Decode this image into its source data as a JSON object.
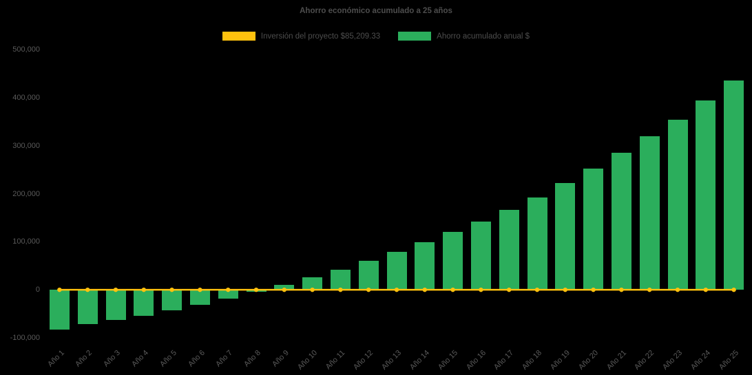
{
  "title": "Ahorro económico acumulado a 25 años",
  "legend": {
    "investment_label": "Inversión del proyecto $85,209.33",
    "savings_label": "Ahorro acumulado anual $"
  },
  "colors": {
    "investment": "#FFC20E",
    "savings": "#2BAE5C",
    "background": "#000000",
    "title_text": "#4d4d4d",
    "axis_text": "#5a5a5a"
  },
  "chart_data": {
    "type": "bar",
    "title": "Ahorro económico acumulado a 25 años",
    "categories": [
      "Año 1",
      "Año 2",
      "Año 3",
      "Año 4",
      "Año 5",
      "Año 6",
      "Año 7",
      "Año 8",
      "Año 9",
      "Año 10",
      "Año 11",
      "Año 12",
      "Año 13",
      "Año 14",
      "Año 15",
      "Año 16",
      "Año 17",
      "Año 18",
      "Año 19",
      "Año 20",
      "Año 21",
      "Año 22",
      "Año 23",
      "Año 24",
      "Año 25"
    ],
    "series": [
      {
        "name": "Inversión del proyecto $85,209.33",
        "type": "line",
        "color": "#FFC20E",
        "values": [
          0,
          0,
          0,
          0,
          0,
          0,
          0,
          0,
          0,
          0,
          0,
          0,
          0,
          0,
          0,
          0,
          0,
          0,
          0,
          0,
          0,
          0,
          0,
          0,
          0
        ]
      },
      {
        "name": "Ahorro acumulado anual $",
        "type": "bar",
        "color": "#2BAE5C",
        "values": [
          -83000,
          -71000,
          -63000,
          -54000,
          -43000,
          -31000,
          -18000,
          -4000,
          10000,
          26000,
          42000,
          60000,
          79000,
          99000,
          120000,
          142000,
          166000,
          192000,
          222000,
          252000,
          285000,
          319000,
          354000,
          394000,
          435000
        ]
      }
    ],
    "xlabel": "",
    "ylabel": "",
    "ylim": [
      -100000,
      500000
    ],
    "yticks": [
      -100000,
      0,
      100000,
      200000,
      300000,
      400000,
      500000
    ],
    "grid": false,
    "legend_position": "top"
  }
}
